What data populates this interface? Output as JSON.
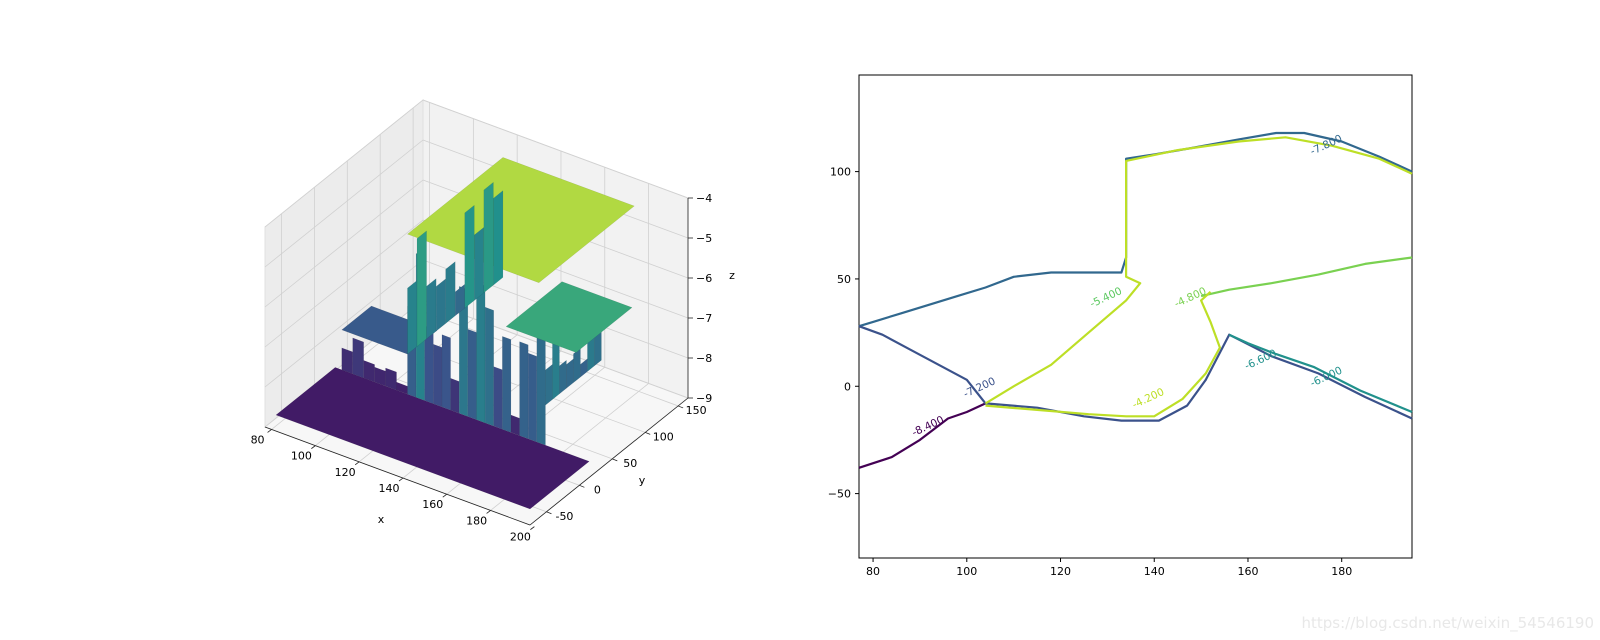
{
  "chart_data": [
    {
      "type": "surface3d",
      "xlabel": "x",
      "ylabel": "y",
      "zlabel": "z",
      "x_ticks": [
        80,
        100,
        120,
        140,
        160,
        180,
        200
      ],
      "y_ticks": [
        -50,
        0,
        50,
        100,
        150
      ],
      "z_ticks": [
        -9,
        -8,
        -7,
        -6,
        -5,
        -4
      ],
      "xlim": [
        77,
        198
      ],
      "ylim": [
        -75,
        165
      ],
      "zlim": [
        -9,
        -4
      ],
      "colormap": "viridis",
      "grid": true,
      "levels": [
        {
          "z": -8.6,
          "region": "low floor"
        },
        {
          "z": -7.6,
          "region": "left-back ledge"
        },
        {
          "z": -6.0,
          "region": "middle terrace"
        },
        {
          "z": -4.6,
          "region": "top plateau"
        }
      ]
    },
    {
      "type": "contour",
      "x_ticks": [
        80,
        100,
        120,
        140,
        160,
        180
      ],
      "y_ticks": [
        -50,
        0,
        50,
        100
      ],
      "xlim": [
        77,
        195
      ],
      "ylim": [
        -80,
        145
      ],
      "colormap": "viridis",
      "contour_labels": [
        "-8.400",
        "-7.800",
        "-7.200",
        "-6.600",
        "-6.000",
        "-5.400",
        "-4.800",
        "-4.200"
      ],
      "series": [
        {
          "level": -8.4,
          "color": "#440154",
          "points": [
            [
              77,
              -38
            ],
            [
              84,
              -33
            ],
            [
              90,
              -25
            ],
            [
              96,
              -15
            ],
            [
              100,
              -12
            ],
            [
              104,
              -8
            ]
          ]
        },
        {
          "level": -7.8,
          "color": "#31688e",
          "points": [
            [
              77,
              28
            ],
            [
              80,
              30
            ],
            [
              86,
              34
            ],
            [
              92,
              38
            ],
            [
              98,
              42
            ],
            [
              104,
              46
            ],
            [
              110,
              51
            ],
            [
              118,
              53
            ],
            [
              133,
              53
            ],
            [
              134,
              60
            ],
            [
              134,
              106
            ],
            [
              140,
              108
            ],
            [
              148,
              111
            ],
            [
              158,
              115
            ],
            [
              166,
              118
            ],
            [
              172,
              118
            ],
            [
              180,
              114
            ],
            [
              188,
              107
            ],
            [
              195,
              100
            ]
          ]
        },
        {
          "level": -7.2,
          "color": "#3b528b",
          "points": [
            [
              77,
              28
            ],
            [
              82,
              24
            ],
            [
              88,
              17
            ],
            [
              94,
              10
            ],
            [
              100,
              3
            ],
            [
              104,
              -8
            ],
            [
              115,
              -10
            ],
            [
              125,
              -14
            ],
            [
              133,
              -16
            ],
            [
              141,
              -16
            ],
            [
              147,
              -9
            ],
            [
              151,
              3
            ],
            [
              156,
              24
            ],
            [
              165,
              14
            ],
            [
              175,
              6
            ],
            [
              185,
              -5
            ],
            [
              195,
              -15
            ]
          ]
        },
        {
          "level": -6.6,
          "color": "#21918c",
          "points": [
            [
              156,
              24
            ],
            [
              160,
              20
            ],
            [
              166,
              15
            ],
            [
              174,
              9
            ],
            [
              184,
              -2
            ],
            [
              195,
              -12
            ]
          ]
        },
        {
          "level": -4.8,
          "color": "#7ad151",
          "points": [
            [
              150,
              42
            ],
            [
              156,
              45
            ],
            [
              165,
              48
            ],
            [
              175,
              52
            ],
            [
              185,
              57
            ],
            [
              195,
              60
            ]
          ]
        },
        {
          "level": -4.2,
          "color": "#bddf26",
          "points": [
            [
              104,
              -8
            ],
            [
              110,
              0
            ],
            [
              118,
              10
            ],
            [
              126,
              25
            ],
            [
              134,
              40
            ],
            [
              137,
              48
            ],
            [
              134,
              51
            ],
            [
              134,
              105
            ],
            [
              145,
              110
            ],
            [
              158,
              114
            ],
            [
              168,
              116
            ],
            [
              178,
              112
            ],
            [
              188,
              106
            ],
            [
              195,
              99
            ]
          ]
        },
        {
          "level": -4.2,
          "color": "#bddf26",
          "points": [
            [
              104,
              -9
            ],
            [
              115,
              -11
            ],
            [
              126,
              -13
            ],
            [
              134,
              -14
            ],
            [
              140,
              -14
            ],
            [
              146,
              -6
            ],
            [
              151,
              6
            ],
            [
              154,
              18
            ],
            [
              152,
              30
            ],
            [
              150,
              40
            ],
            [
              152,
              44
            ]
          ]
        }
      ],
      "label_positions": [
        {
          "text": "-8.400",
          "x": 92,
          "y": -20,
          "color": "#440154"
        },
        {
          "text": "-7.800",
          "x": 177,
          "y": 111,
          "color": "#31688e"
        },
        {
          "text": "-7.200",
          "x": 103,
          "y": -2,
          "color": "#3b528b"
        },
        {
          "text": "-6.600",
          "x": 163,
          "y": 11,
          "color": "#21918c"
        },
        {
          "text": "-6.000",
          "x": 177,
          "y": 3,
          "color": "#21918c"
        },
        {
          "text": "-5.400",
          "x": 130,
          "y": 40,
          "color": "#5ec962"
        },
        {
          "text": "-4.800",
          "x": 148,
          "y": 40,
          "color": "#7ad151"
        },
        {
          "text": "-4.200",
          "x": 139,
          "y": -7,
          "color": "#bddf26"
        }
      ]
    }
  ],
  "watermark": "https://blog.csdn.net/weixin_54546190"
}
